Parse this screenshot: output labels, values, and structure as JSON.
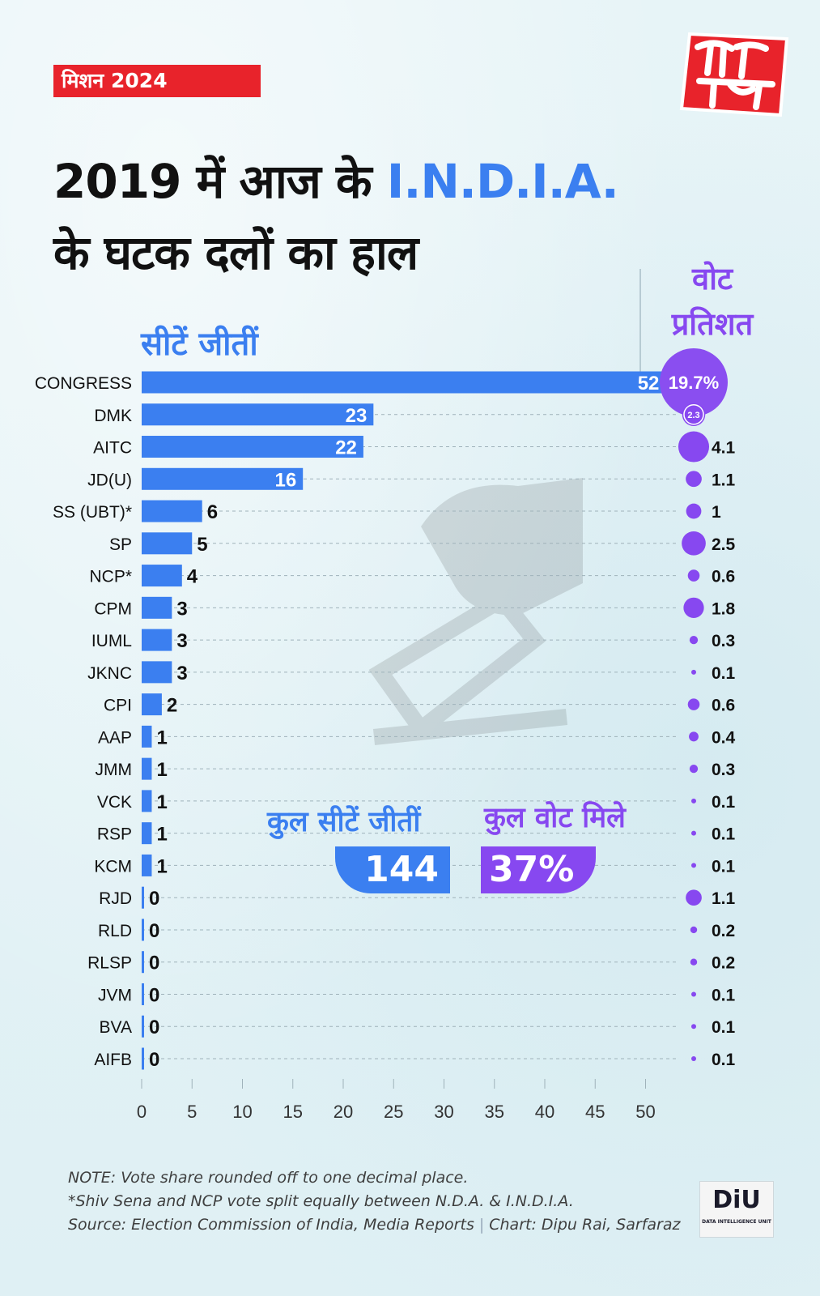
{
  "header": {
    "tag": "मिशन 2024",
    "title_part1": "2019 में आज के ",
    "title_highlight": "I.N.D.I.A.",
    "title_line2": "के घटक दलों का हाल",
    "logo_alt": "आज तक"
  },
  "labels": {
    "seats_heading": "सीटें जीतीं",
    "vote_heading_line1": "वोट",
    "vote_heading_line2": "प्रतिशत"
  },
  "totals": {
    "seats_label": "कुल सीटें जीतीं",
    "seats_value": "144",
    "votes_label": "कुल वोट मिले",
    "votes_value": "37%"
  },
  "chart_data": {
    "type": "bar",
    "categories": [
      "CONGRESS",
      "DMK",
      "AITC",
      "JD(U)",
      "SS (UBT)*",
      "SP",
      "NCP*",
      "CPM",
      "IUML",
      "JKNC",
      "CPI",
      "AAP",
      "JMM",
      "VCK",
      "RSP",
      "KCM",
      "RJD",
      "RLD",
      "RLSP",
      "JVM",
      "BVA",
      "AIFB"
    ],
    "series": [
      {
        "name": "सीटें जीतीं",
        "values": [
          52,
          23,
          22,
          16,
          6,
          5,
          4,
          3,
          3,
          3,
          2,
          1,
          1,
          1,
          1,
          1,
          0,
          0,
          0,
          0,
          0,
          0
        ]
      },
      {
        "name": "वोट प्रतिशत",
        "values": [
          19.7,
          2.3,
          4.1,
          1.1,
          1,
          2.5,
          0.6,
          1.8,
          0.3,
          0.1,
          0.6,
          0.4,
          0.3,
          0.1,
          0.1,
          0.1,
          1.1,
          0.2,
          0.2,
          0.1,
          0.1,
          0.1
        ]
      }
    ],
    "vote_labels": [
      "19.7%",
      "2.3",
      "4.1",
      "1.1",
      "1",
      "2.5",
      "0.6",
      "1.8",
      "0.3",
      "0.1",
      "0.6",
      "0.4",
      "0.3",
      "0.1",
      "0.1",
      "0.1",
      "1.1",
      "0.2",
      "0.2",
      "0.1",
      "0.1",
      "0.1"
    ],
    "x_ticks": [
      0,
      5,
      10,
      15,
      20,
      25,
      30,
      35,
      40,
      45,
      50
    ],
    "xlim": [
      0,
      52
    ],
    "grid": "dashed horizontal guide per row",
    "colors": {
      "bar": "#3b7ff0",
      "bubble": "#8748f0",
      "bubble_big": "#8a4ef0"
    }
  },
  "footer": {
    "note1": "NOTE: Vote share rounded off to one decimal place.",
    "note2": "*Shiv Sena and NCP vote split equally between N.D.A. & I.N.D.I.A.",
    "source": "Source: Election Commission of India, Media Reports",
    "credit": "Chart: Dipu Rai, Sarfaraz",
    "badge": "DiU",
    "badge_sub": "DATA INTELLIGENCE UNIT"
  }
}
